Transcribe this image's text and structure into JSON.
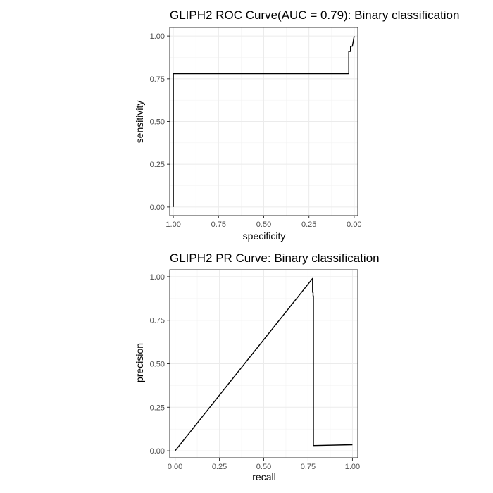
{
  "chart_data": [
    {
      "type": "line",
      "title": "GLIPH2 ROC Curve(AUC = 0.79): Binary classification",
      "xlabel": "specificity",
      "ylabel": "sensitivity",
      "x_reversed": true,
      "xlim": [
        1.02,
        -0.02
      ],
      "ylim": [
        -0.05,
        1.05
      ],
      "x_ticks": [
        1.0,
        0.75,
        0.5,
        0.25,
        0.0
      ],
      "x_tick_labels": [
        "1.00",
        "0.75",
        "0.50",
        "0.25",
        "0.00"
      ],
      "y_ticks": [
        0.0,
        0.25,
        0.5,
        0.75,
        1.0
      ],
      "y_tick_labels": [
        "0.00",
        "0.25",
        "0.50",
        "0.75",
        "1.00"
      ],
      "grid": true,
      "line_color": "#000000",
      "series": [
        {
          "x": [
            1.0,
            1.0,
            0.97,
            0.03,
            0.03,
            0.02,
            0.02,
            0.01,
            0.0
          ],
          "y": [
            0.0,
            0.78,
            0.78,
            0.78,
            0.91,
            0.91,
            0.94,
            0.94,
            1.0
          ]
        }
      ]
    },
    {
      "type": "line",
      "title": "GLIPH2 PR Curve: Binary classification",
      "xlabel": "recall",
      "ylabel": "precision",
      "x_reversed": false,
      "xlim": [
        -0.03,
        1.03
      ],
      "ylim": [
        -0.04,
        1.04
      ],
      "x_ticks": [
        0.0,
        0.25,
        0.5,
        0.75,
        1.0
      ],
      "x_tick_labels": [
        "0.00",
        "0.25",
        "0.50",
        "0.75",
        "1.00"
      ],
      "y_ticks": [
        0.0,
        0.25,
        0.5,
        0.75,
        1.0
      ],
      "y_tick_labels": [
        "0.00",
        "0.25",
        "0.50",
        "0.75",
        "1.00"
      ],
      "grid": true,
      "line_color": "#000000",
      "series": [
        {
          "x": [
            0.0,
            0.775,
            0.775,
            0.778,
            0.778,
            0.78,
            0.78,
            1.0
          ],
          "y": [
            0.0,
            0.99,
            0.91,
            0.91,
            0.89,
            0.89,
            0.03,
            0.035
          ]
        }
      ]
    }
  ]
}
